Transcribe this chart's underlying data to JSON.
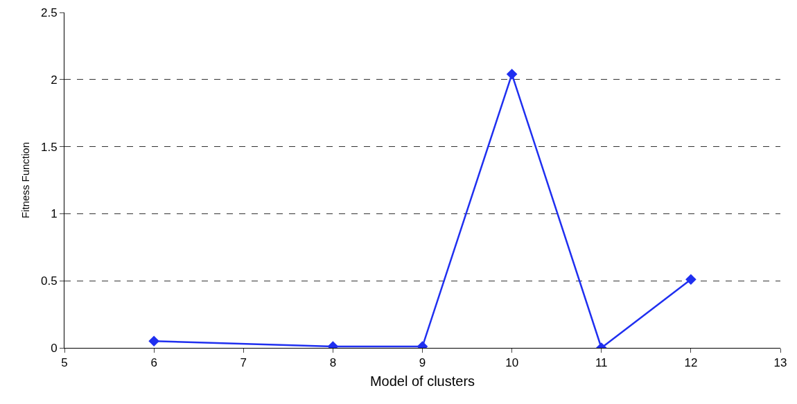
{
  "chart_data": {
    "type": "line",
    "xlabel": "Model of clusters",
    "ylabel": "Fitness Function",
    "x": [
      6,
      8,
      9,
      10,
      11,
      12
    ],
    "series": [
      {
        "color": "#1f2ff0",
        "values": [
          0.05,
          0.01,
          0.01,
          2.04,
          0,
          0.51
        ]
      }
    ],
    "xlim": [
      5,
      13
    ],
    "xticks": [
      5,
      6,
      7,
      8,
      9,
      10,
      11,
      12,
      13
    ],
    "ylim": [
      0,
      2.5
    ],
    "yticks": [
      0,
      0.5,
      1,
      1.5,
      2,
      2.5
    ],
    "grid": "y",
    "legend": false,
    "marker": "diamond",
    "line_style": "solid"
  }
}
